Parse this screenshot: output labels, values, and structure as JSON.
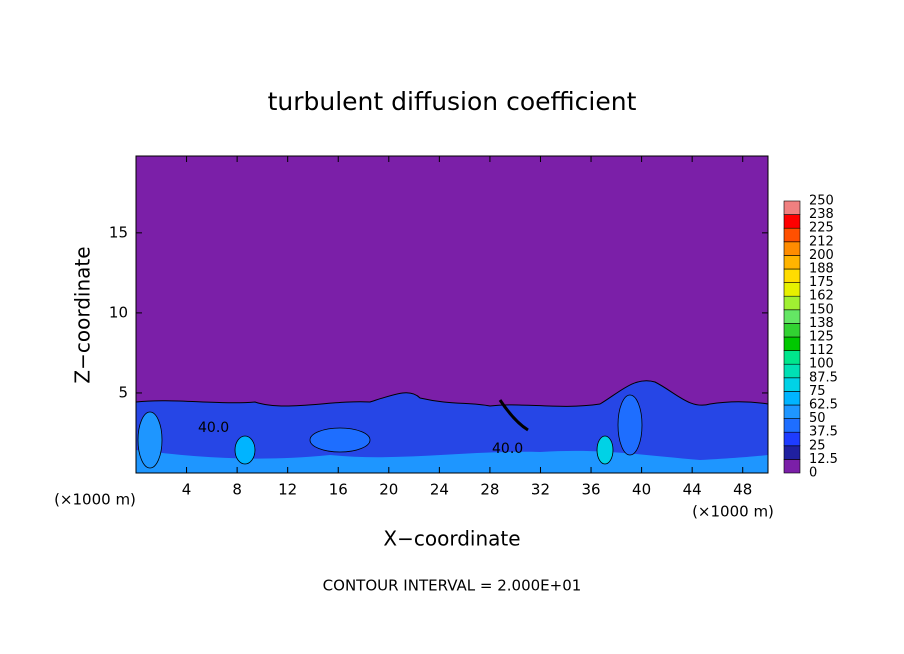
{
  "chart_data": {
    "type": "contour",
    "title": "turbulent diffusion coefficient",
    "xlabel": "X−coordinate",
    "ylabel": "Z−coordinate",
    "x_unit_left": "(×1000 m)",
    "x_unit_right": "(×1000 m)",
    "note": "CONTOUR INTERVAL = 2.000E+01",
    "contour_labels": [
      "40.0",
      "40.0"
    ],
    "xlim": [
      0,
      50
    ],
    "xticks": [
      4,
      8,
      12,
      16,
      20,
      24,
      28,
      32,
      36,
      40,
      44,
      48
    ],
    "ylim": [
      0,
      19.8
    ],
    "yticks": [
      5,
      10,
      15
    ],
    "colorbar": {
      "levels": [
        0,
        12.5,
        25,
        37.5,
        50,
        62.5,
        75,
        87.5,
        100,
        112,
        125,
        138,
        150,
        162,
        175,
        188,
        200,
        212,
        225,
        238,
        250
      ],
      "colors": [
        "#7b1fa8",
        "#2020a0",
        "#1e3cff",
        "#1e6eff",
        "#1e96ff",
        "#00b4ff",
        "#00d2e6",
        "#00e0b4",
        "#00e68c",
        "#00c800",
        "#32d232",
        "#64e664",
        "#a0f032",
        "#e6f000",
        "#ffdc00",
        "#ffb400",
        "#ff8c00",
        "#ff5000",
        "#ff0000",
        "#f08080"
      ]
    }
  }
}
